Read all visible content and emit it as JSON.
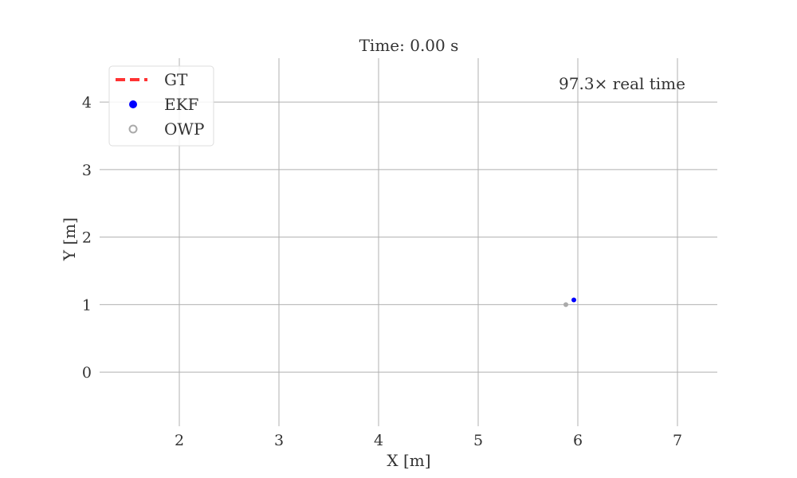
{
  "chart_data": {
    "type": "scatter",
    "title": "Time: 0.00 s",
    "xlabel": "X [m]",
    "ylabel": "Y [m]",
    "xlim": [
      1.2,
      7.4
    ],
    "ylim": [
      -0.8,
      4.65
    ],
    "xticks": [
      2,
      3,
      4,
      5,
      6,
      7
    ],
    "yticks": [
      0,
      1,
      2,
      3,
      4
    ],
    "grid": true,
    "legend_position": "top-left",
    "annotation": "97.3× real time",
    "series": [
      {
        "name": "GT",
        "style": "dashed-line",
        "color": "#ff3333",
        "points": []
      },
      {
        "name": "EKF",
        "style": "filled-marker",
        "color": "#0000ff",
        "points": [
          [
            5.96,
            1.07
          ]
        ]
      },
      {
        "name": "OWP",
        "style": "hollow-marker",
        "color": "#aaaaaa",
        "points": [
          [
            5.88,
            1.0
          ]
        ]
      }
    ]
  }
}
